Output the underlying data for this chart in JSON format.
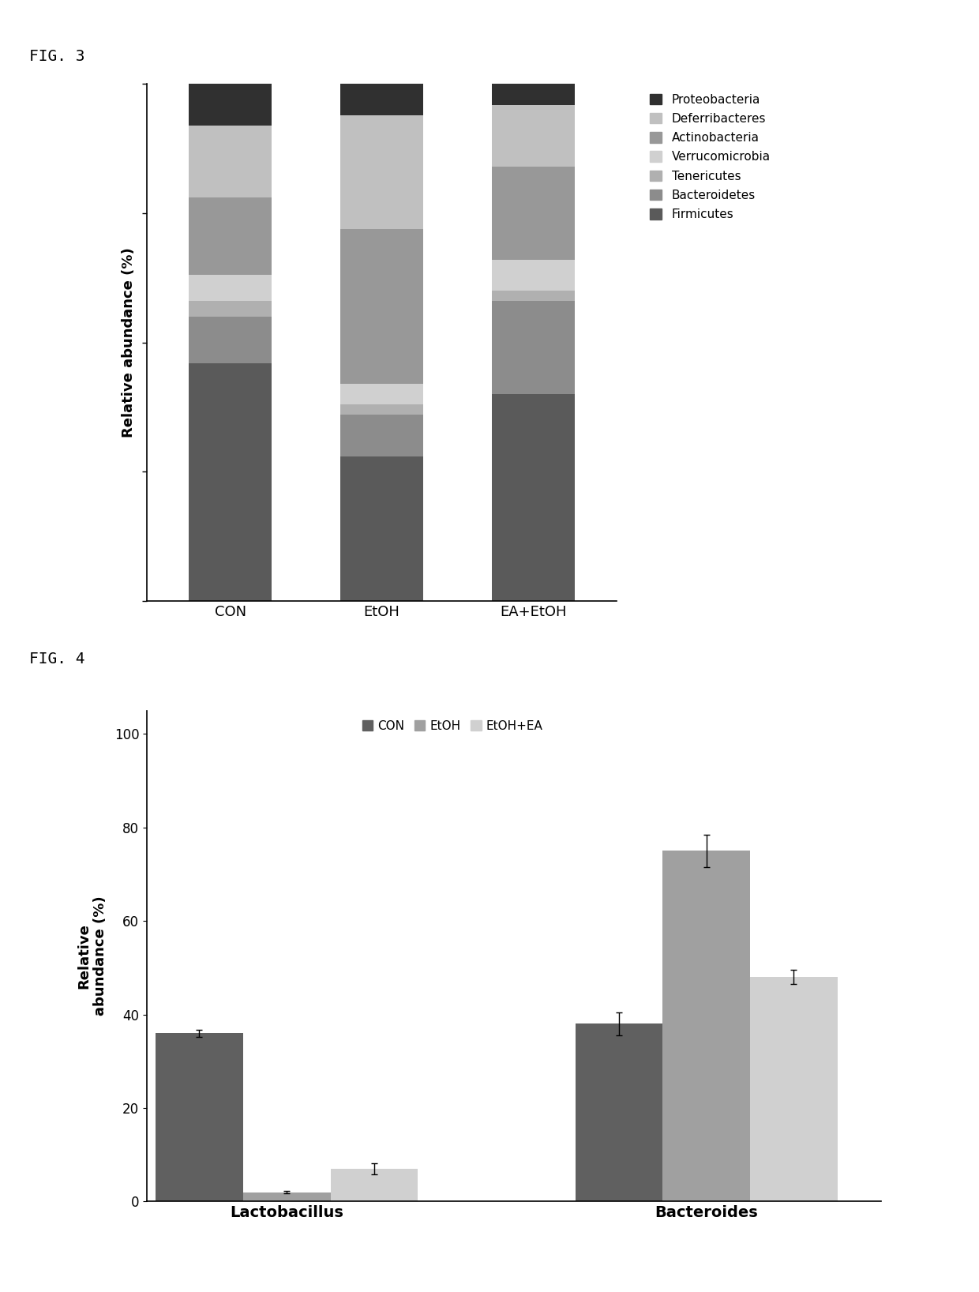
{
  "fig3": {
    "title": "FIG. 3",
    "groups": [
      "CON",
      "EtOH",
      "EA+EtOH"
    ],
    "bacteria": [
      "Firmicutes",
      "Bacteroidetes",
      "Tenericutes",
      "Verrucomicrobia",
      "Actinobacteria",
      "Deferribacteres",
      "Proteobacteria"
    ],
    "colors": [
      "#5a5a5a",
      "#8c8c8c",
      "#b0b0b0",
      "#d0d0d0",
      "#989898",
      "#c0c0c0",
      "#303030"
    ],
    "data": {
      "CON": [
        46,
        9,
        3,
        5,
        15,
        14,
        8
      ],
      "EtOH": [
        28,
        8,
        2,
        4,
        30,
        22,
        6
      ],
      "EA+EtOH": [
        40,
        18,
        2,
        6,
        18,
        12,
        4
      ]
    },
    "ylabel": "Relative abundance (%)",
    "ylim": [
      0,
      100
    ],
    "ytick_labels_visible": false
  },
  "fig4": {
    "title": "FIG. 4",
    "groups": [
      "Lactobacillus",
      "Bacteroides"
    ],
    "conditions": [
      "CON",
      "EtOH",
      "EtOH+EA"
    ],
    "colors": [
      "#606060",
      "#a0a0a0",
      "#d0d0d0"
    ],
    "data": {
      "Lactobacillus": [
        36,
        2,
        7
      ],
      "Bacteroides": [
        38,
        75,
        48
      ]
    },
    "errors": {
      "Lactobacillus": [
        0.8,
        0.2,
        1.2
      ],
      "Bacteroides": [
        2.5,
        3.5,
        1.5
      ]
    },
    "ylabel": "Relative\nabundance (%)",
    "ylim": [
      0,
      105
    ],
    "yticks": [
      0,
      20,
      40,
      60,
      80,
      100
    ]
  },
  "background_color": "#ffffff",
  "fig_title_fontsize": 14,
  "label_fontsize": 13,
  "tick_fontsize": 12,
  "legend_fontsize": 11
}
